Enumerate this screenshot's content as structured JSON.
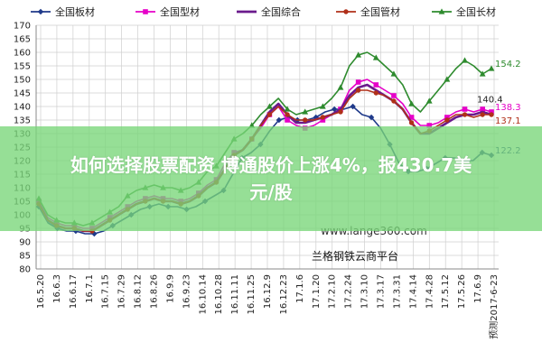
{
  "chart_data": {
    "type": "line",
    "title": "",
    "xlabel": "",
    "ylabel": "",
    "ylim": [
      80,
      170
    ],
    "yticks": [
      80,
      85,
      90,
      95,
      100,
      105,
      110,
      115,
      120,
      125,
      130,
      135,
      140,
      145,
      150,
      155,
      160,
      165,
      170
    ],
    "grid": true,
    "legend_position": "top",
    "x_labels": [
      "16.5.20",
      "16.6.3",
      "16.6.17",
      "16.7.1",
      "16.7.15",
      "16.7.29",
      "16.8.12",
      "16.8.26",
      "16.9.9",
      "16.9.23",
      "16.10.14",
      "16.10.28",
      "16.11.11",
      "16.11.25",
      "16.12.9",
      "16.12.23",
      "17.1.6",
      "17.1.20",
      "17.2.10",
      "17.2.24",
      "17.3.10",
      "17.3.17",
      "17.3.31",
      "17.4.14",
      "17.4.28",
      "17.5.12",
      "17.5.26",
      "17.6.9",
      "预测2017-6-23"
    ],
    "series": [
      {
        "name": "全国板材",
        "color": "#1f3a8a",
        "marker": "diamond",
        "end_label": "122.2",
        "values": [
          103,
          97,
          95,
          94,
          94,
          93,
          93,
          94,
          96,
          98,
          100,
          102,
          103,
          104,
          103,
          103,
          102,
          103,
          105,
          107,
          109,
          115,
          121,
          123,
          126,
          131,
          135,
          136,
          135,
          135,
          136,
          138,
          139,
          139,
          140,
          137,
          136,
          132,
          126,
          119,
          116,
          116,
          117,
          119,
          121,
          121,
          120,
          120,
          123,
          122
        ]
      },
      {
        "name": "全国型材",
        "color": "#e600c8",
        "marker": "square",
        "end_label": "138.3",
        "values": [
          105,
          99,
          97,
          96,
          96,
          95,
          95,
          97,
          99,
          101,
          103,
          105,
          106,
          107,
          106,
          106,
          105,
          106,
          108,
          111,
          113,
          119,
          123,
          124,
          128,
          132,
          137,
          140,
          135,
          133,
          132,
          133,
          135,
          137,
          139,
          146,
          149,
          150,
          148,
          146,
          144,
          141,
          136,
          133,
          133,
          134,
          136,
          138,
          139,
          138,
          139,
          138
        ]
      },
      {
        "name": "全国综合",
        "color": "#6a1a8c",
        "marker": "none",
        "end_label": "",
        "values": [
          104,
          98,
          96,
          95,
          95,
          94,
          94,
          96,
          98,
          100,
          102,
          104,
          105,
          106,
          105,
          105,
          104,
          105,
          107,
          110,
          112,
          117,
          122,
          124,
          128,
          133,
          138,
          141,
          137,
          134,
          134,
          135,
          136,
          137,
          139,
          144,
          147,
          148,
          146,
          144,
          142,
          139,
          134,
          130,
          130,
          132,
          134,
          136,
          137,
          137,
          138,
          137
        ]
      },
      {
        "name": "全国管材",
        "color": "#b0301a",
        "marker": "circle",
        "end_label": "137.1",
        "values": [
          104,
          98,
          96,
          95,
          95,
          94,
          94,
          96,
          98,
          100,
          102,
          104,
          105,
          106,
          105,
          105,
          104,
          105,
          107,
          110,
          112,
          117,
          122,
          124,
          128,
          133,
          137,
          140,
          137,
          135,
          135,
          135,
          136,
          137,
          138,
          143,
          146,
          146,
          145,
          144,
          142,
          139,
          134,
          130,
          131,
          133,
          135,
          137,
          137,
          136,
          137,
          137
        ]
      },
      {
        "name": "全国长材",
        "color": "#2e8b2e",
        "marker": "triangle",
        "end_label": "154.2",
        "values": [
          106,
          100,
          98,
          97,
          97,
          96,
          97,
          99,
          101,
          103,
          107,
          109,
          110,
          111,
          110,
          110,
          109,
          110,
          112,
          116,
          118,
          123,
          128,
          130,
          133,
          137,
          140,
          143,
          139,
          137,
          138,
          139,
          140,
          143,
          147,
          155,
          159,
          160,
          158,
          155,
          152,
          148,
          141,
          138,
          142,
          146,
          150,
          154,
          157,
          155,
          152,
          154
        ]
      }
    ],
    "annotations": [
      "140.4"
    ]
  },
  "watermark": {
    "url": "www.lange360.com",
    "name": "兰格钢铁云商平台"
  },
  "banner": {
    "line1": "如何选择股票配资 博通股价上涨4%，报430.7美",
    "line2": "元/股"
  }
}
